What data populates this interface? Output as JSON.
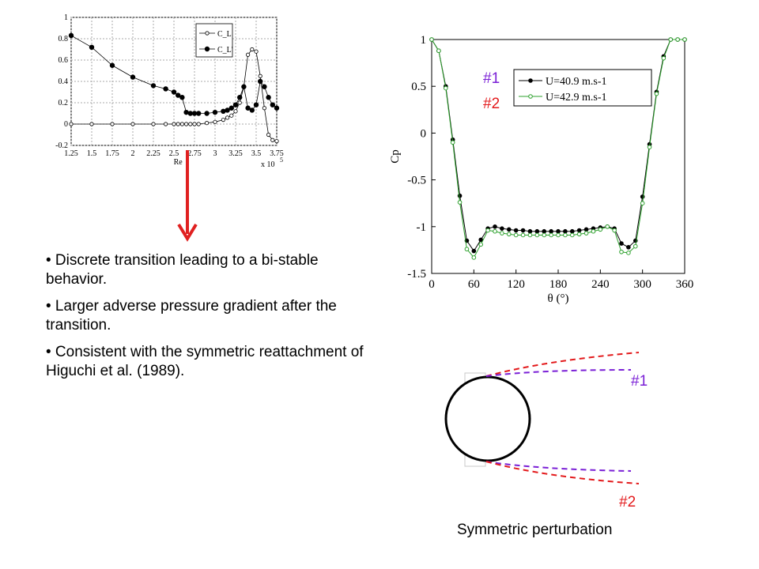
{
  "chart_data": [
    {
      "type": "line",
      "x": [
        1.25,
        1.5,
        1.75,
        2.0,
        2.25,
        2.4,
        2.5,
        2.55,
        2.6,
        2.65,
        2.7,
        2.75,
        2.8,
        2.9,
        3.0,
        3.1,
        3.15,
        3.2,
        3.25,
        3.3,
        3.35,
        3.4,
        3.45,
        3.5,
        3.55,
        3.6,
        3.65,
        3.7,
        3.75
      ],
      "series": [
        {
          "name": "C_L",
          "values": [
            0,
            0,
            0,
            0,
            0,
            0,
            0,
            0,
            0,
            0,
            0,
            0,
            0,
            0.01,
            0.02,
            0.04,
            0.06,
            0.08,
            0.12,
            0.2,
            0.35,
            0.65,
            0.7,
            0.68,
            0.45,
            0.15,
            -0.1,
            -0.15,
            -0.16
          ]
        },
        {
          "name": "C_L'",
          "values": [
            0.83,
            0.72,
            0.55,
            0.44,
            0.36,
            0.33,
            0.3,
            0.27,
            0.25,
            0.11,
            0.1,
            0.1,
            0.1,
            0.1,
            0.11,
            0.12,
            0.13,
            0.15,
            0.18,
            0.25,
            0.35,
            0.15,
            0.13,
            0.18,
            0.4,
            0.35,
            0.25,
            0.18,
            0.15
          ]
        }
      ],
      "xlabel": "Re",
      "xmultiplier": "x 10",
      "xmultiplier_exp": "5",
      "xticks": [
        "1.25",
        "1.5",
        "1.75",
        "2",
        "2.25",
        "2.5",
        "2.75",
        "3",
        "3.25",
        "3.5",
        "3.75"
      ],
      "yticks": [
        "-0.2",
        "0",
        "0.2",
        "0.4",
        "0.6",
        "0.8",
        "1"
      ],
      "xlim": [
        1.25,
        3.75
      ],
      "ylim": [
        -0.2,
        1
      ],
      "grid": true,
      "legend": "top-right"
    },
    {
      "type": "line",
      "x": [
        0,
        10,
        20,
        30,
        40,
        50,
        60,
        70,
        80,
        90,
        100,
        110,
        120,
        130,
        140,
        150,
        160,
        170,
        180,
        190,
        200,
        210,
        220,
        230,
        240,
        250,
        260,
        270,
        280,
        290,
        300,
        310,
        320,
        330,
        340,
        350,
        360
      ],
      "series": [
        {
          "name": "U=40.9 m.s-1",
          "values": [
            1,
            0.88,
            0.5,
            -0.07,
            -0.67,
            -1.15,
            -1.26,
            -1.14,
            -1.02,
            -1.0,
            -1.02,
            -1.03,
            -1.04,
            -1.04,
            -1.05,
            -1.05,
            -1.05,
            -1.05,
            -1.05,
            -1.05,
            -1.05,
            -1.04,
            -1.03,
            -1.02,
            -1.01,
            -1.0,
            -1.02,
            -1.18,
            -1.22,
            -1.15,
            -0.68,
            -0.12,
            0.44,
            0.82,
            1.0,
            1.0,
            1.0
          ]
        },
        {
          "name": "U=42.9 m.s-1",
          "values": [
            1,
            0.88,
            0.48,
            -0.1,
            -0.74,
            -1.24,
            -1.33,
            -1.19,
            -1.04,
            -1.05,
            -1.07,
            -1.08,
            -1.09,
            -1.09,
            -1.09,
            -1.09,
            -1.09,
            -1.09,
            -1.09,
            -1.09,
            -1.09,
            -1.08,
            -1.07,
            -1.05,
            -1.03,
            -1.0,
            -1.04,
            -1.27,
            -1.28,
            -1.21,
            -0.75,
            -0.15,
            0.42,
            0.8,
            1.0,
            1.0,
            1.0
          ]
        }
      ],
      "xlabel": "θ (°)",
      "ylabel": "Cp",
      "xticks": [
        "0",
        "60",
        "120",
        "180",
        "240",
        "300",
        "360"
      ],
      "yticks": [
        "-1.5",
        "-1",
        "-0.5",
        "0",
        "0.5",
        "1"
      ],
      "xlim": [
        0,
        360
      ],
      "ylim": [
        -1.5,
        1
      ],
      "grid": false,
      "legend": "top-right",
      "annotations": [
        "#1",
        "#2"
      ]
    }
  ],
  "bullets": [
    "• Discrete transition leading to a bi-stable behavior.",
    "• Larger adverse pressure gradient after the transition.",
    "• Consistent with the symmetric reattachment of Higuchi et al. (1989)."
  ],
  "diagram": {
    "label1": "#1",
    "label2": "#2",
    "caption": "Symmetric perturbation"
  },
  "colors": {
    "red": "#e31a1c",
    "purple": "#7a1fd6",
    "green": "#2ca02c",
    "arrow": "#e02020"
  }
}
